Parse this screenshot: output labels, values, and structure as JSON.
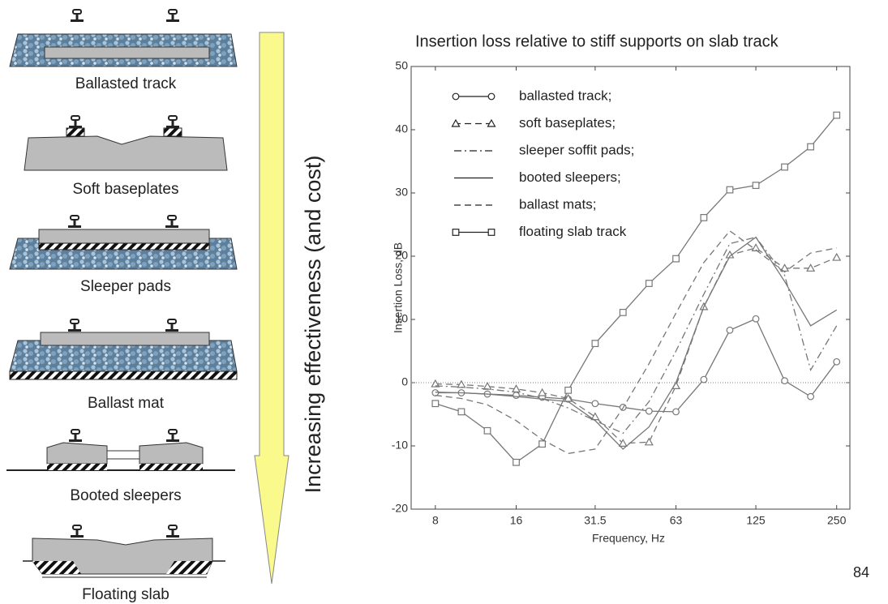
{
  "track_types": [
    "Ballasted track",
    "Soft baseplates",
    "Sleeper pads",
    "Ballast mat",
    "Booted sleepers",
    "Floating slab"
  ],
  "arrow_label": "Increasing effectiveness (and cost)",
  "page_number": "84",
  "chart_data": {
    "type": "line",
    "title": "Insertion loss relative to stiff supports on slab track",
    "x_label": "Frequency, Hz",
    "y_label": "Insertion Loss, dB",
    "x": [
      8,
      10,
      12.5,
      16,
      20,
      25,
      31.5,
      40,
      50,
      63,
      80,
      100,
      125,
      160,
      200,
      250
    ],
    "xscale": "log",
    "xlim": [
      6.5,
      280
    ],
    "xticks": [
      8,
      16,
      31.5,
      63,
      125,
      250
    ],
    "ylim": [
      -20,
      50
    ],
    "yticks": [
      -20,
      -10,
      0,
      10,
      20,
      30,
      40,
      50
    ],
    "zero_line": true,
    "series": [
      {
        "name": "ballasted track;",
        "color": "#777777",
        "marker": "circle",
        "dash": "solid",
        "values": [
          -1.6,
          -1.6,
          -1.8,
          -2,
          -2.3,
          -2.6,
          -3.3,
          -3.9,
          -4.5,
          -4.6,
          0.5,
          8.3,
          10.1,
          0.3,
          -2.2,
          3.3
        ]
      },
      {
        "name": "soft baseplates;",
        "color": "#777777",
        "marker": "triangle",
        "dash": "dashed",
        "values": [
          -0.2,
          -0.3,
          -0.6,
          -1,
          -1.6,
          -2.5,
          -5.4,
          -9.6,
          -9.4,
          -0.5,
          12,
          20.2,
          21.3,
          18.1,
          18.1,
          19.8
        ]
      },
      {
        "name": "sleeper soffit pads;",
        "color": "#777777",
        "marker": null,
        "dash": "dashdot",
        "values": [
          -0.5,
          -0.7,
          -1,
          -1.5,
          -2.5,
          -4,
          -6,
          -8,
          -3,
          5,
          14,
          22,
          23,
          17,
          2,
          9
        ]
      },
      {
        "name": "booted sleepers;",
        "color": "#777777",
        "marker": null,
        "dash": "solid",
        "values": [
          -1.5,
          -1.6,
          -1.8,
          -2.2,
          -2.6,
          -3,
          -6,
          -10.5,
          -7,
          0,
          12,
          20,
          23,
          16,
          9,
          11.5
        ]
      },
      {
        "name": "ballast mats;",
        "color": "#777777",
        "marker": null,
        "dash": "dashed",
        "values": [
          -2,
          -2.5,
          -3.5,
          -6,
          -9,
          -11.2,
          -10.5,
          -4,
          3,
          11,
          19,
          24,
          21,
          17.5,
          20.5,
          21.3
        ]
      },
      {
        "name": "floating slab track",
        "color": "#777777",
        "marker": "square",
        "dash": "solid",
        "values": [
          -3.3,
          -4.6,
          -7.6,
          -12.6,
          -9.7,
          -1.2,
          6.2,
          11.1,
          15.7,
          19.6,
          26.1,
          30.5,
          31.2,
          34.1,
          37.3,
          42.3
        ]
      }
    ]
  }
}
